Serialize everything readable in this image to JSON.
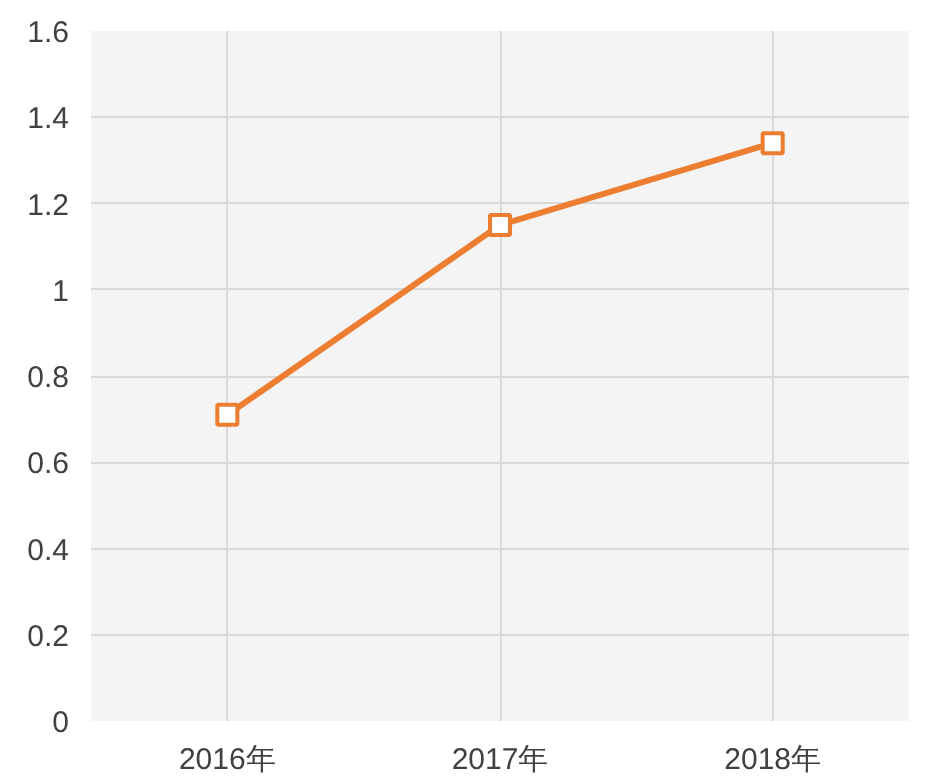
{
  "chart_data": {
    "type": "line",
    "categories": [
      "2016年",
      "2017年",
      "2018年"
    ],
    "series": [
      {
        "color": "#ed7d31",
        "values": [
          0.71,
          1.15,
          1.34
        ]
      }
    ],
    "ylim": [
      0,
      1.6
    ],
    "yticks": [
      0,
      0.2,
      0.4,
      0.6,
      0.8,
      1,
      1.2,
      1.4,
      1.6
    ],
    "grid": true,
    "marker": "square",
    "line_style": "solid"
  }
}
